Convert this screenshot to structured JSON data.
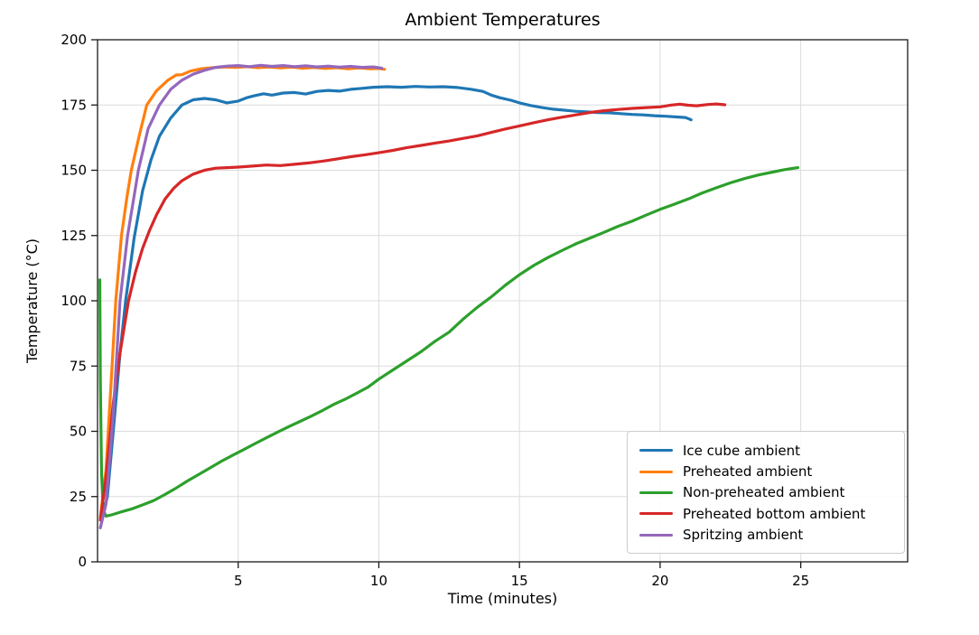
{
  "chart_data": {
    "type": "line",
    "title": "Ambient Temperatures",
    "xlabel": "Time (minutes)",
    "ylabel": "Temperature (°C)",
    "xlim": [
      0,
      28.8
    ],
    "ylim": [
      0,
      200
    ],
    "xticks": [
      5,
      10,
      15,
      20,
      25
    ],
    "yticks": [
      0,
      25,
      50,
      75,
      100,
      125,
      150,
      175,
      200
    ],
    "grid": true,
    "grid_color": "#dcdcdc",
    "spine_color": "#1a1a1a",
    "legend_position": "lower right",
    "series": [
      {
        "name": "Ice cube ambient",
        "color": "#1f77b4",
        "points": [
          [
            0.15,
            16
          ],
          [
            0.35,
            25
          ],
          [
            0.6,
            55
          ],
          [
            0.8,
            80
          ],
          [
            1.0,
            100
          ],
          [
            1.3,
            124
          ],
          [
            1.6,
            142
          ],
          [
            1.9,
            154
          ],
          [
            2.2,
            163
          ],
          [
            2.6,
            170
          ],
          [
            3.0,
            175
          ],
          [
            3.4,
            177
          ],
          [
            3.8,
            177.5
          ],
          [
            4.2,
            177
          ],
          [
            4.6,
            175.8
          ],
          [
            5.0,
            176.5
          ],
          [
            5.3,
            177.8
          ],
          [
            5.6,
            178.6
          ],
          [
            5.9,
            179.3
          ],
          [
            6.2,
            178.8
          ],
          [
            6.6,
            179.6
          ],
          [
            7.0,
            179.8
          ],
          [
            7.4,
            179.2
          ],
          [
            7.8,
            180.2
          ],
          [
            8.2,
            180.6
          ],
          [
            8.6,
            180.3
          ],
          [
            9.0,
            181.0
          ],
          [
            9.4,
            181.4
          ],
          [
            9.8,
            181.8
          ],
          [
            10.3,
            182.0
          ],
          [
            10.8,
            181.8
          ],
          [
            11.3,
            182.1
          ],
          [
            11.8,
            181.9
          ],
          [
            12.3,
            182.0
          ],
          [
            12.8,
            181.7
          ],
          [
            13.3,
            181.0
          ],
          [
            13.7,
            180.2
          ],
          [
            14.0,
            178.8
          ],
          [
            14.3,
            177.8
          ],
          [
            14.7,
            176.8
          ],
          [
            15.0,
            175.8
          ],
          [
            15.4,
            174.8
          ],
          [
            15.8,
            174.0
          ],
          [
            16.2,
            173.4
          ],
          [
            16.6,
            173.0
          ],
          [
            17.0,
            172.6
          ],
          [
            17.4,
            172.4
          ],
          [
            17.8,
            172.1
          ],
          [
            18.2,
            172.0
          ],
          [
            18.6,
            171.7
          ],
          [
            19.0,
            171.4
          ],
          [
            19.4,
            171.2
          ],
          [
            19.8,
            170.9
          ],
          [
            20.2,
            170.7
          ],
          [
            20.6,
            170.4
          ],
          [
            20.9,
            170.2
          ],
          [
            21.05,
            169.6
          ],
          [
            21.1,
            169.3
          ]
        ]
      },
      {
        "name": "Preheated ambient",
        "color": "#ff7f0e",
        "points": [
          [
            0.1,
            17
          ],
          [
            0.3,
            35
          ],
          [
            0.5,
            72
          ],
          [
            0.65,
            100
          ],
          [
            0.85,
            125
          ],
          [
            1.05,
            140
          ],
          [
            1.2,
            150
          ],
          [
            1.5,
            164
          ],
          [
            1.75,
            175
          ],
          [
            2.1,
            180.5
          ],
          [
            2.5,
            184.5
          ],
          [
            2.8,
            186.5
          ],
          [
            3.0,
            186.6
          ],
          [
            3.3,
            188.0
          ],
          [
            3.7,
            188.9
          ],
          [
            4.1,
            189.3
          ],
          [
            4.5,
            189.6
          ],
          [
            4.9,
            189.4
          ],
          [
            5.3,
            189.7
          ],
          [
            5.7,
            189.3
          ],
          [
            6.1,
            189.6
          ],
          [
            6.5,
            189.2
          ],
          [
            6.9,
            189.5
          ],
          [
            7.3,
            189.1
          ],
          [
            7.7,
            189.4
          ],
          [
            8.1,
            189.0
          ],
          [
            8.5,
            189.3
          ],
          [
            8.9,
            188.9
          ],
          [
            9.3,
            189.2
          ],
          [
            9.7,
            188.9
          ],
          [
            10.0,
            189.0
          ],
          [
            10.2,
            188.7
          ]
        ]
      },
      {
        "name": "Non-preheated ambient",
        "color": "#2ca02c",
        "points": [
          [
            0.08,
            108
          ],
          [
            0.1,
            70
          ],
          [
            0.14,
            35
          ],
          [
            0.2,
            20
          ],
          [
            0.3,
            17.5
          ],
          [
            0.5,
            18
          ],
          [
            0.8,
            19
          ],
          [
            1.2,
            20.2
          ],
          [
            1.6,
            21.8
          ],
          [
            2.0,
            23.5
          ],
          [
            2.4,
            25.8
          ],
          [
            2.8,
            28.3
          ],
          [
            3.2,
            31.0
          ],
          [
            3.6,
            33.5
          ],
          [
            4.0,
            36.0
          ],
          [
            4.4,
            38.5
          ],
          [
            4.8,
            40.8
          ],
          [
            5.2,
            43.0
          ],
          [
            5.6,
            45.3
          ],
          [
            6.0,
            47.5
          ],
          [
            6.4,
            49.7
          ],
          [
            6.8,
            51.8
          ],
          [
            7.2,
            53.8
          ],
          [
            7.6,
            55.8
          ],
          [
            8.0,
            58.0
          ],
          [
            8.4,
            60.3
          ],
          [
            8.8,
            62.3
          ],
          [
            9.2,
            64.5
          ],
          [
            9.6,
            66.8
          ],
          [
            10.0,
            70.0
          ],
          [
            10.5,
            73.5
          ],
          [
            11.0,
            77.0
          ],
          [
            11.5,
            80.5
          ],
          [
            12.0,
            84.5
          ],
          [
            12.5,
            88.0
          ],
          [
            13.0,
            93.0
          ],
          [
            13.5,
            97.5
          ],
          [
            14.0,
            101.5
          ],
          [
            14.5,
            106.0
          ],
          [
            15.0,
            110.0
          ],
          [
            15.5,
            113.5
          ],
          [
            16.0,
            116.5
          ],
          [
            16.5,
            119.2
          ],
          [
            17.0,
            121.8
          ],
          [
            17.5,
            124.0
          ],
          [
            18.0,
            126.2
          ],
          [
            18.5,
            128.5
          ],
          [
            19.0,
            130.5
          ],
          [
            19.5,
            132.8
          ],
          [
            20.0,
            135.0
          ],
          [
            20.5,
            137.0
          ],
          [
            21.0,
            139.0
          ],
          [
            21.5,
            141.3
          ],
          [
            22.0,
            143.3
          ],
          [
            22.5,
            145.2
          ],
          [
            23.0,
            146.8
          ],
          [
            23.5,
            148.2
          ],
          [
            24.0,
            149.3
          ],
          [
            24.4,
            150.2
          ],
          [
            24.7,
            150.7
          ],
          [
            24.9,
            151.0
          ]
        ]
      },
      {
        "name": "Preheated bottom ambient",
        "color": "#d62728",
        "points": [
          [
            0.1,
            16
          ],
          [
            0.3,
            32
          ],
          [
            0.55,
            60
          ],
          [
            0.8,
            80
          ],
          [
            1.1,
            100
          ],
          [
            1.35,
            111
          ],
          [
            1.6,
            120
          ],
          [
            1.85,
            127
          ],
          [
            2.1,
            133
          ],
          [
            2.4,
            139
          ],
          [
            2.7,
            143
          ],
          [
            3.0,
            146
          ],
          [
            3.4,
            148.5
          ],
          [
            3.8,
            150.0
          ],
          [
            4.2,
            150.8
          ],
          [
            4.6,
            151.0
          ],
          [
            5.0,
            151.2
          ],
          [
            5.5,
            151.6
          ],
          [
            6.0,
            152.0
          ],
          [
            6.5,
            151.8
          ],
          [
            7.0,
            152.3
          ],
          [
            7.5,
            152.8
          ],
          [
            8.0,
            153.5
          ],
          [
            8.5,
            154.3
          ],
          [
            9.0,
            155.2
          ],
          [
            9.5,
            155.9
          ],
          [
            10.0,
            156.7
          ],
          [
            10.5,
            157.6
          ],
          [
            11.0,
            158.7
          ],
          [
            11.5,
            159.5
          ],
          [
            12.0,
            160.4
          ],
          [
            12.5,
            161.2
          ],
          [
            13.0,
            162.2
          ],
          [
            13.5,
            163.2
          ],
          [
            14.0,
            164.5
          ],
          [
            14.5,
            165.8
          ],
          [
            15.0,
            167.0
          ],
          [
            15.5,
            168.2
          ],
          [
            16.0,
            169.3
          ],
          [
            16.5,
            170.3
          ],
          [
            17.0,
            171.2
          ],
          [
            17.6,
            172.3
          ],
          [
            18.0,
            172.8
          ],
          [
            18.5,
            173.3
          ],
          [
            19.0,
            173.7
          ],
          [
            19.5,
            174.0
          ],
          [
            20.0,
            174.3
          ],
          [
            20.4,
            175.0
          ],
          [
            20.7,
            175.3
          ],
          [
            21.0,
            174.9
          ],
          [
            21.3,
            174.7
          ],
          [
            21.7,
            175.2
          ],
          [
            22.0,
            175.4
          ],
          [
            22.3,
            175.1
          ]
        ]
      },
      {
        "name": "Spritzing ambient",
        "color": "#9467bd",
        "points": [
          [
            0.1,
            13
          ],
          [
            0.3,
            22
          ],
          [
            0.55,
            55
          ],
          [
            0.8,
            100
          ],
          [
            1.07,
            125
          ],
          [
            1.45,
            150
          ],
          [
            1.8,
            166
          ],
          [
            2.2,
            175
          ],
          [
            2.6,
            181
          ],
          [
            3.0,
            184.5
          ],
          [
            3.4,
            186.8
          ],
          [
            3.8,
            188.3
          ],
          [
            4.2,
            189.4
          ],
          [
            4.6,
            189.9
          ],
          [
            5.0,
            190.1
          ],
          [
            5.4,
            189.7
          ],
          [
            5.8,
            190.2
          ],
          [
            6.2,
            189.8
          ],
          [
            6.6,
            190.1
          ],
          [
            7.0,
            189.7
          ],
          [
            7.4,
            190.0
          ],
          [
            7.8,
            189.6
          ],
          [
            8.2,
            189.9
          ],
          [
            8.6,
            189.5
          ],
          [
            9.0,
            189.8
          ],
          [
            9.4,
            189.4
          ],
          [
            9.8,
            189.6
          ],
          [
            10.1,
            189.1
          ]
        ]
      }
    ]
  }
}
